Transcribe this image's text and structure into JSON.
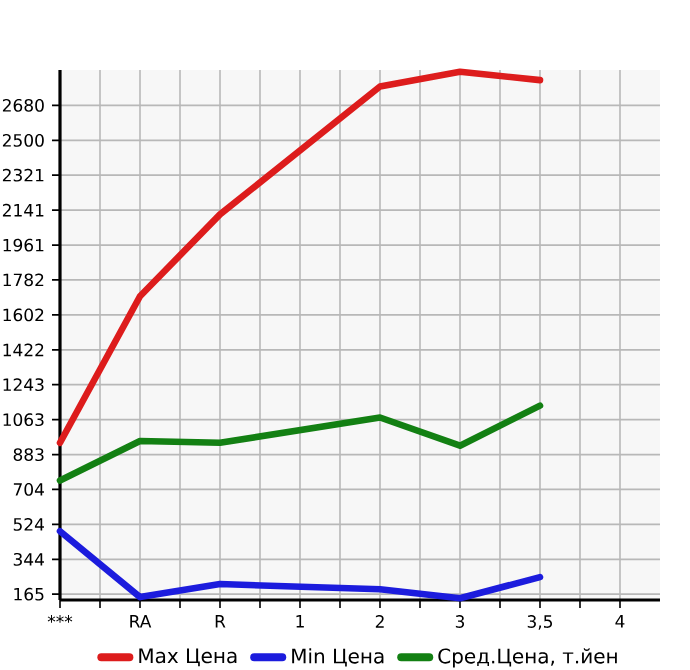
{
  "chart_data": {
    "type": "line",
    "categories": [
      "***",
      "RA",
      "R",
      "1",
      "2",
      "3",
      "3,5",
      "4"
    ],
    "series": [
      {
        "name": "Max Цена",
        "color": "#dd1c1c",
        "values": [
          944,
          1698,
          2119,
          null,
          2777,
          2853,
          2810,
          null
        ]
      },
      {
        "name": "Min Цена",
        "color": "#1c1cdd",
        "values": [
          489,
          150,
          217,
          null,
          190,
          144,
          253,
          null
        ]
      },
      {
        "name": "Сред.Цена, т.йен",
        "color": "#138013",
        "values": [
          750,
          953,
          944,
          null,
          1074,
          929,
          1135,
          null
        ]
      }
    ],
    "ylim": [
      135,
      2862
    ],
    "yticks": [
      165,
      344,
      524,
      704,
      883,
      1063,
      1243,
      1422,
      1602,
      1782,
      1961,
      2141,
      2321,
      2500,
      2680
    ],
    "grid": true,
    "legend": "bottom",
    "marker": "none",
    "line_style": "solid"
  }
}
